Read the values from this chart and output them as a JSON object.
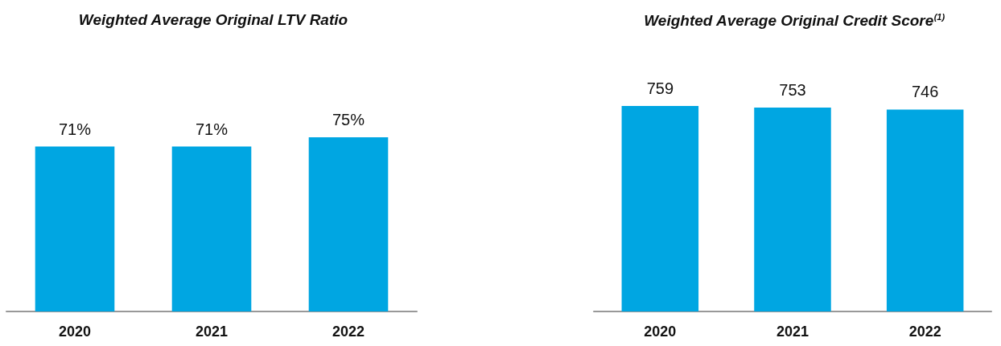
{
  "chart_data": [
    {
      "type": "bar",
      "title": "Weighted Average Original LTV Ratio",
      "categories": [
        "2020",
        "2021",
        "2022"
      ],
      "values": [
        71,
        71,
        75
      ],
      "value_labels": [
        "71%",
        "71%",
        "75%"
      ],
      "color": "#00a6e2"
    },
    {
      "type": "bar",
      "title": "Weighted Average Original Credit Score$^{(1)}$",
      "categories": [
        "2020",
        "2021",
        "2022"
      ],
      "values": [
        759,
        753,
        746
      ],
      "data_labels": true,
      "color": "#00a6e2"
    }
  ]
}
